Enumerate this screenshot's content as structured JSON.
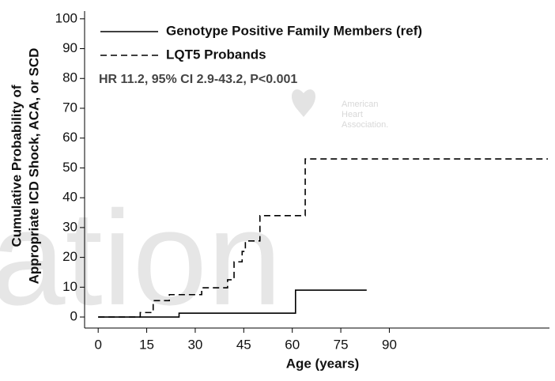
{
  "chart_data": {
    "type": "step",
    "ylabel": [
      "Cumulative Probability of",
      "Appropriate ICD Shock, ACA, or SCD"
    ],
    "xlabel": "Age (years)",
    "annotation": "HR 11.2, 95% CI 2.9-43.2, P<0.001",
    "watermark": {
      "text": "ation",
      "logo": [
        "American",
        "Heart",
        "Association."
      ]
    },
    "xlim": [
      -4.2,
      139.5
    ],
    "ylim": [
      -3.7,
      102.6
    ],
    "xticks": [
      0,
      15,
      30,
      45,
      60,
      75,
      90
    ],
    "yticks": [
      0,
      10,
      20,
      30,
      40,
      50,
      60,
      70,
      80,
      90,
      100
    ],
    "series": [
      {
        "name": "Genotype Positive Family Members (ref)",
        "color": "#000000",
        "dash": false,
        "x": [
          0,
          25,
          61,
          83
        ],
        "values": [
          0,
          1.3,
          9,
          9
        ]
      },
      {
        "name": "LQT5 Probands",
        "color": "#000000",
        "dash": true,
        "x": [
          0,
          13,
          17,
          22,
          32,
          40,
          42,
          44.5,
          45.5,
          50,
          64,
          139
        ],
        "values": [
          0,
          1.5,
          5.5,
          7.5,
          9.8,
          12.5,
          18.5,
          22,
          25.5,
          34,
          53,
          53
        ]
      }
    ]
  }
}
